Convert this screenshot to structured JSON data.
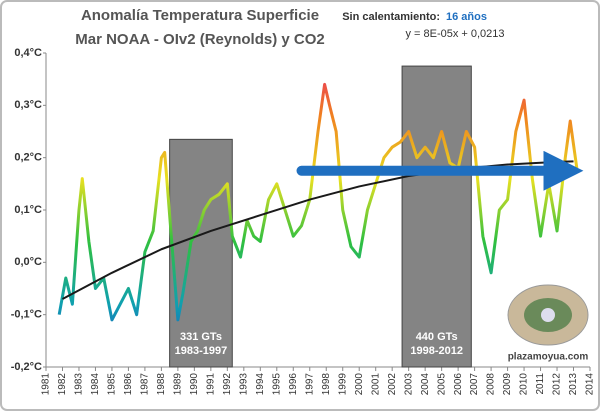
{
  "chart_data": {
    "type": "line",
    "title": "Anomalía Temperatura Superficie",
    "subtitle": "Mar NOAA - OIv2 (Reynolds) y CO2",
    "annotation_label": "Sin calentamiento:",
    "annotation_value": "16 años",
    "equation": "y = 8E-05x + 0,0213",
    "watermark": "plazamoyua.com",
    "xlim": [
      1981,
      2014
    ],
    "xticks": [
      1981,
      1982,
      1983,
      1984,
      1985,
      1986,
      1987,
      1988,
      1989,
      1990,
      1991,
      1992,
      1993,
      1994,
      1995,
      1996,
      1997,
      1998,
      1999,
      2000,
      2001,
      2002,
      2003,
      2004,
      2005,
      2006,
      2007,
      2008,
      2009,
      2010,
      2011,
      2012,
      2013,
      2014
    ],
    "ylim": [
      -0.2,
      0.4
    ],
    "yticks": [
      {
        "value": -0.2,
        "label": "-0,2°C"
      },
      {
        "value": -0.1,
        "label": "-0,1°C"
      },
      {
        "value": 0,
        "label": "0,0°C"
      },
      {
        "value": 0.1,
        "label": "0,1°C"
      },
      {
        "value": 0.2,
        "label": "0,2°C"
      },
      {
        "value": 0.3,
        "label": "0,3°C"
      },
      {
        "value": 0.4,
        "label": "0,4°C"
      }
    ],
    "gradient_colors": [
      "#2040c8",
      "#10a0b0",
      "#30c040",
      "#e8e020",
      "#f08020",
      "#e82070"
    ],
    "periods": [
      {
        "xlim": [
          1988.5,
          1992.3
        ],
        "top": 0.235,
        "label": "331 GTs",
        "years": "1983-1997"
      },
      {
        "xlim": [
          2002.6,
          2006.8
        ],
        "top": 0.375,
        "label": "440 GTs",
        "years": "1998-2012"
      }
    ],
    "series": [
      {
        "x": [
          1981.8,
          1982.2,
          1982.6,
          1983.0,
          1983.2,
          1983.6,
          1984.0,
          1984.5,
          1985.0,
          1985.5,
          1986.0,
          1986.5,
          1987.0,
          1987.5,
          1988.0,
          1988.2,
          1988.6,
          1989.0,
          1989.3,
          1989.8,
          1990.2,
          1990.6,
          1991.0,
          1991.5,
          1992.0,
          1992.3,
          1992.8,
          1993.2,
          1993.6,
          1994.0,
          1994.5,
          1995.0,
          1995.5,
          1996.0,
          1996.5,
          1997.0,
          1997.5,
          1997.9,
          1998.2,
          1998.6,
          1999.0,
          1999.5,
          2000.0,
          2000.5,
          2001.0,
          2001.5,
          2002.0,
          2002.5,
          2003.0,
          2003.5,
          2004.0,
          2004.5,
          2005.0,
          2005.5,
          2006.0,
          2006.5,
          2007.0,
          2007.5,
          2008.0,
          2008.5,
          2009.0,
          2009.5,
          2010.0,
          2010.5,
          2011.0,
          2011.5,
          2012.0,
          2012.5,
          2012.8,
          2013.2
        ],
        "values": [
          -0.1,
          -0.03,
          -0.08,
          0.1,
          0.16,
          0.04,
          -0.05,
          -0.03,
          -0.11,
          -0.08,
          -0.05,
          -0.1,
          0.02,
          0.06,
          0.2,
          0.21,
          0.05,
          -0.11,
          -0.06,
          0.04,
          0.06,
          0.1,
          0.12,
          0.13,
          0.15,
          0.05,
          0.01,
          0.08,
          0.05,
          0.04,
          0.12,
          0.15,
          0.1,
          0.05,
          0.07,
          0.12,
          0.25,
          0.34,
          0.3,
          0.25,
          0.1,
          0.03,
          0.01,
          0.1,
          0.15,
          0.2,
          0.22,
          0.23,
          0.25,
          0.2,
          0.22,
          0.2,
          0.25,
          0.19,
          0.18,
          0.25,
          0.22,
          0.05,
          -0.02,
          0.1,
          0.12,
          0.25,
          0.31,
          0.16,
          0.05,
          0.15,
          0.06,
          0.2,
          0.27,
          0.18
        ]
      },
      {
        "color": "#1a1a1a",
        "x": [
          1982,
          1985,
          1988,
          1991,
          1994,
          1997,
          2000,
          2003,
          2006,
          2009,
          2012,
          2013
        ],
        "values": [
          -0.07,
          -0.02,
          0.025,
          0.06,
          0.09,
          0.12,
          0.145,
          0.165,
          0.178,
          0.187,
          0.192,
          0.193
        ]
      }
    ],
    "arrow": {
      "color": "#1f6fc0",
      "x": [
        1996.5,
        2013.6
      ],
      "y": [
        0.175,
        0.175
      ]
    }
  }
}
